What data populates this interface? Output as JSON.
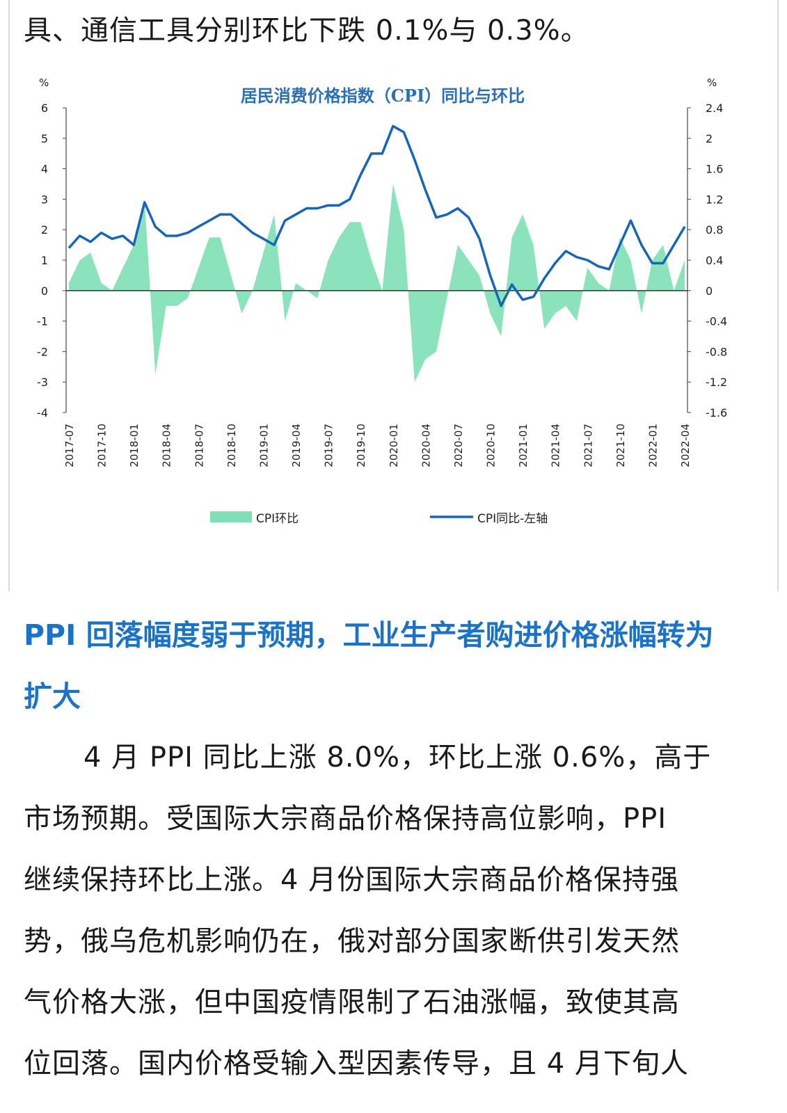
{
  "article": {
    "top_line": "具、通信工具分别环比下跌 0.1%与 0.3%。",
    "section_heading_line1": "PPI 回落幅度弱于预期，工业生产者购进价格涨幅转为",
    "section_heading_line2": "扩大",
    "paragraph_lines": [
      "4 月 PPI 同比上涨 8.0%，环比上涨 0.6%，高于",
      "市场预期。受国际大宗商品价格保持高位影响，PPI",
      "继续保持环比上涨。4 月份国际大宗商品价格保持强",
      "势，俄乌危机影响仍在，俄对部分国家断供引发天然",
      "气价格大涨，但中国疫情限制了石油涨幅，致使其高",
      "位回落。国内价格受输入型因素传导，且 4 月下旬人"
    ]
  },
  "chart_data": {
    "type": "line+area",
    "title": "居民消费价格指数（CPI）同比与环比",
    "left_axis": {
      "unit": "%",
      "ylim": [
        -4,
        6
      ],
      "ticks": [
        "6",
        "5",
        "4",
        "3",
        "2",
        "1",
        "0",
        "-1",
        "-2",
        "-3",
        "-4"
      ]
    },
    "right_axis": {
      "unit": "%",
      "ylim": [
        -1.6,
        2.4
      ],
      "ticks": [
        "2.4",
        "2",
        "1.6",
        "1.2",
        "0.8",
        "0.4",
        "0",
        "-0.4",
        "-0.8",
        "-1.2",
        "-1.6"
      ]
    },
    "x_tick_labels": [
      "2017-07",
      "2017-10",
      "2018-01",
      "2018-04",
      "2018-07",
      "2018-10",
      "2019-01",
      "2019-04",
      "2019-07",
      "2019-10",
      "2020-01",
      "2020-04",
      "2020-07",
      "2020-10",
      "2021-01",
      "2021-04",
      "2021-07",
      "2021-10",
      "2022-01",
      "2022-04"
    ],
    "months": [
      "2017-07",
      "2017-08",
      "2017-09",
      "2017-10",
      "2017-11",
      "2017-12",
      "2018-01",
      "2018-02",
      "2018-03",
      "2018-04",
      "2018-05",
      "2018-06",
      "2018-07",
      "2018-08",
      "2018-09",
      "2018-10",
      "2018-11",
      "2018-12",
      "2019-01",
      "2019-02",
      "2019-03",
      "2019-04",
      "2019-05",
      "2019-06",
      "2019-07",
      "2019-08",
      "2019-09",
      "2019-10",
      "2019-11",
      "2019-12",
      "2020-01",
      "2020-02",
      "2020-03",
      "2020-04",
      "2020-05",
      "2020-06",
      "2020-07",
      "2020-08",
      "2020-09",
      "2020-10",
      "2020-11",
      "2020-12",
      "2021-01",
      "2021-02",
      "2021-03",
      "2021-04",
      "2021-05",
      "2021-06",
      "2021-07",
      "2021-08",
      "2021-09",
      "2021-10",
      "2021-11",
      "2021-12",
      "2022-01",
      "2022-02",
      "2022-03",
      "2022-04"
    ],
    "series": [
      {
        "name": "CPI环比",
        "axis": "right",
        "style": "area",
        "color": "#7ee0b4",
        "values": [
          0.1,
          0.4,
          0.5,
          0.1,
          0.0,
          0.3,
          0.6,
          1.2,
          -1.1,
          -0.2,
          -0.2,
          -0.1,
          0.3,
          0.7,
          0.7,
          0.2,
          -0.3,
          0.0,
          0.5,
          1.0,
          -0.4,
          0.1,
          0.0,
          -0.1,
          0.4,
          0.7,
          0.9,
          0.9,
          0.4,
          0.0,
          1.4,
          0.8,
          -1.2,
          -0.9,
          -0.8,
          -0.1,
          0.6,
          0.4,
          0.2,
          -0.3,
          -0.6,
          0.7,
          1.0,
          0.6,
          -0.5,
          -0.3,
          -0.2,
          -0.4,
          0.3,
          0.1,
          0.0,
          0.7,
          0.4,
          -0.3,
          0.4,
          0.6,
          0.0,
          0.4
        ]
      },
      {
        "name": "CPI同比-左轴",
        "axis": "left",
        "style": "line",
        "color": "#1565b8",
        "values": [
          1.4,
          1.8,
          1.6,
          1.9,
          1.7,
          1.8,
          1.5,
          2.9,
          2.1,
          1.8,
          1.8,
          1.9,
          2.1,
          2.3,
          2.5,
          2.5,
          2.2,
          1.9,
          1.7,
          1.5,
          2.3,
          2.5,
          2.7,
          2.7,
          2.8,
          2.8,
          3.0,
          3.8,
          4.5,
          4.5,
          5.4,
          5.2,
          4.3,
          3.3,
          2.4,
          2.5,
          2.7,
          2.4,
          1.7,
          0.5,
          -0.5,
          0.2,
          -0.3,
          -0.2,
          0.4,
          0.9,
          1.3,
          1.1,
          1.0,
          0.8,
          0.7,
          1.5,
          2.3,
          1.5,
          0.9,
          0.9,
          1.5,
          2.1
        ]
      }
    ],
    "grid": false,
    "legend": "bottom"
  }
}
